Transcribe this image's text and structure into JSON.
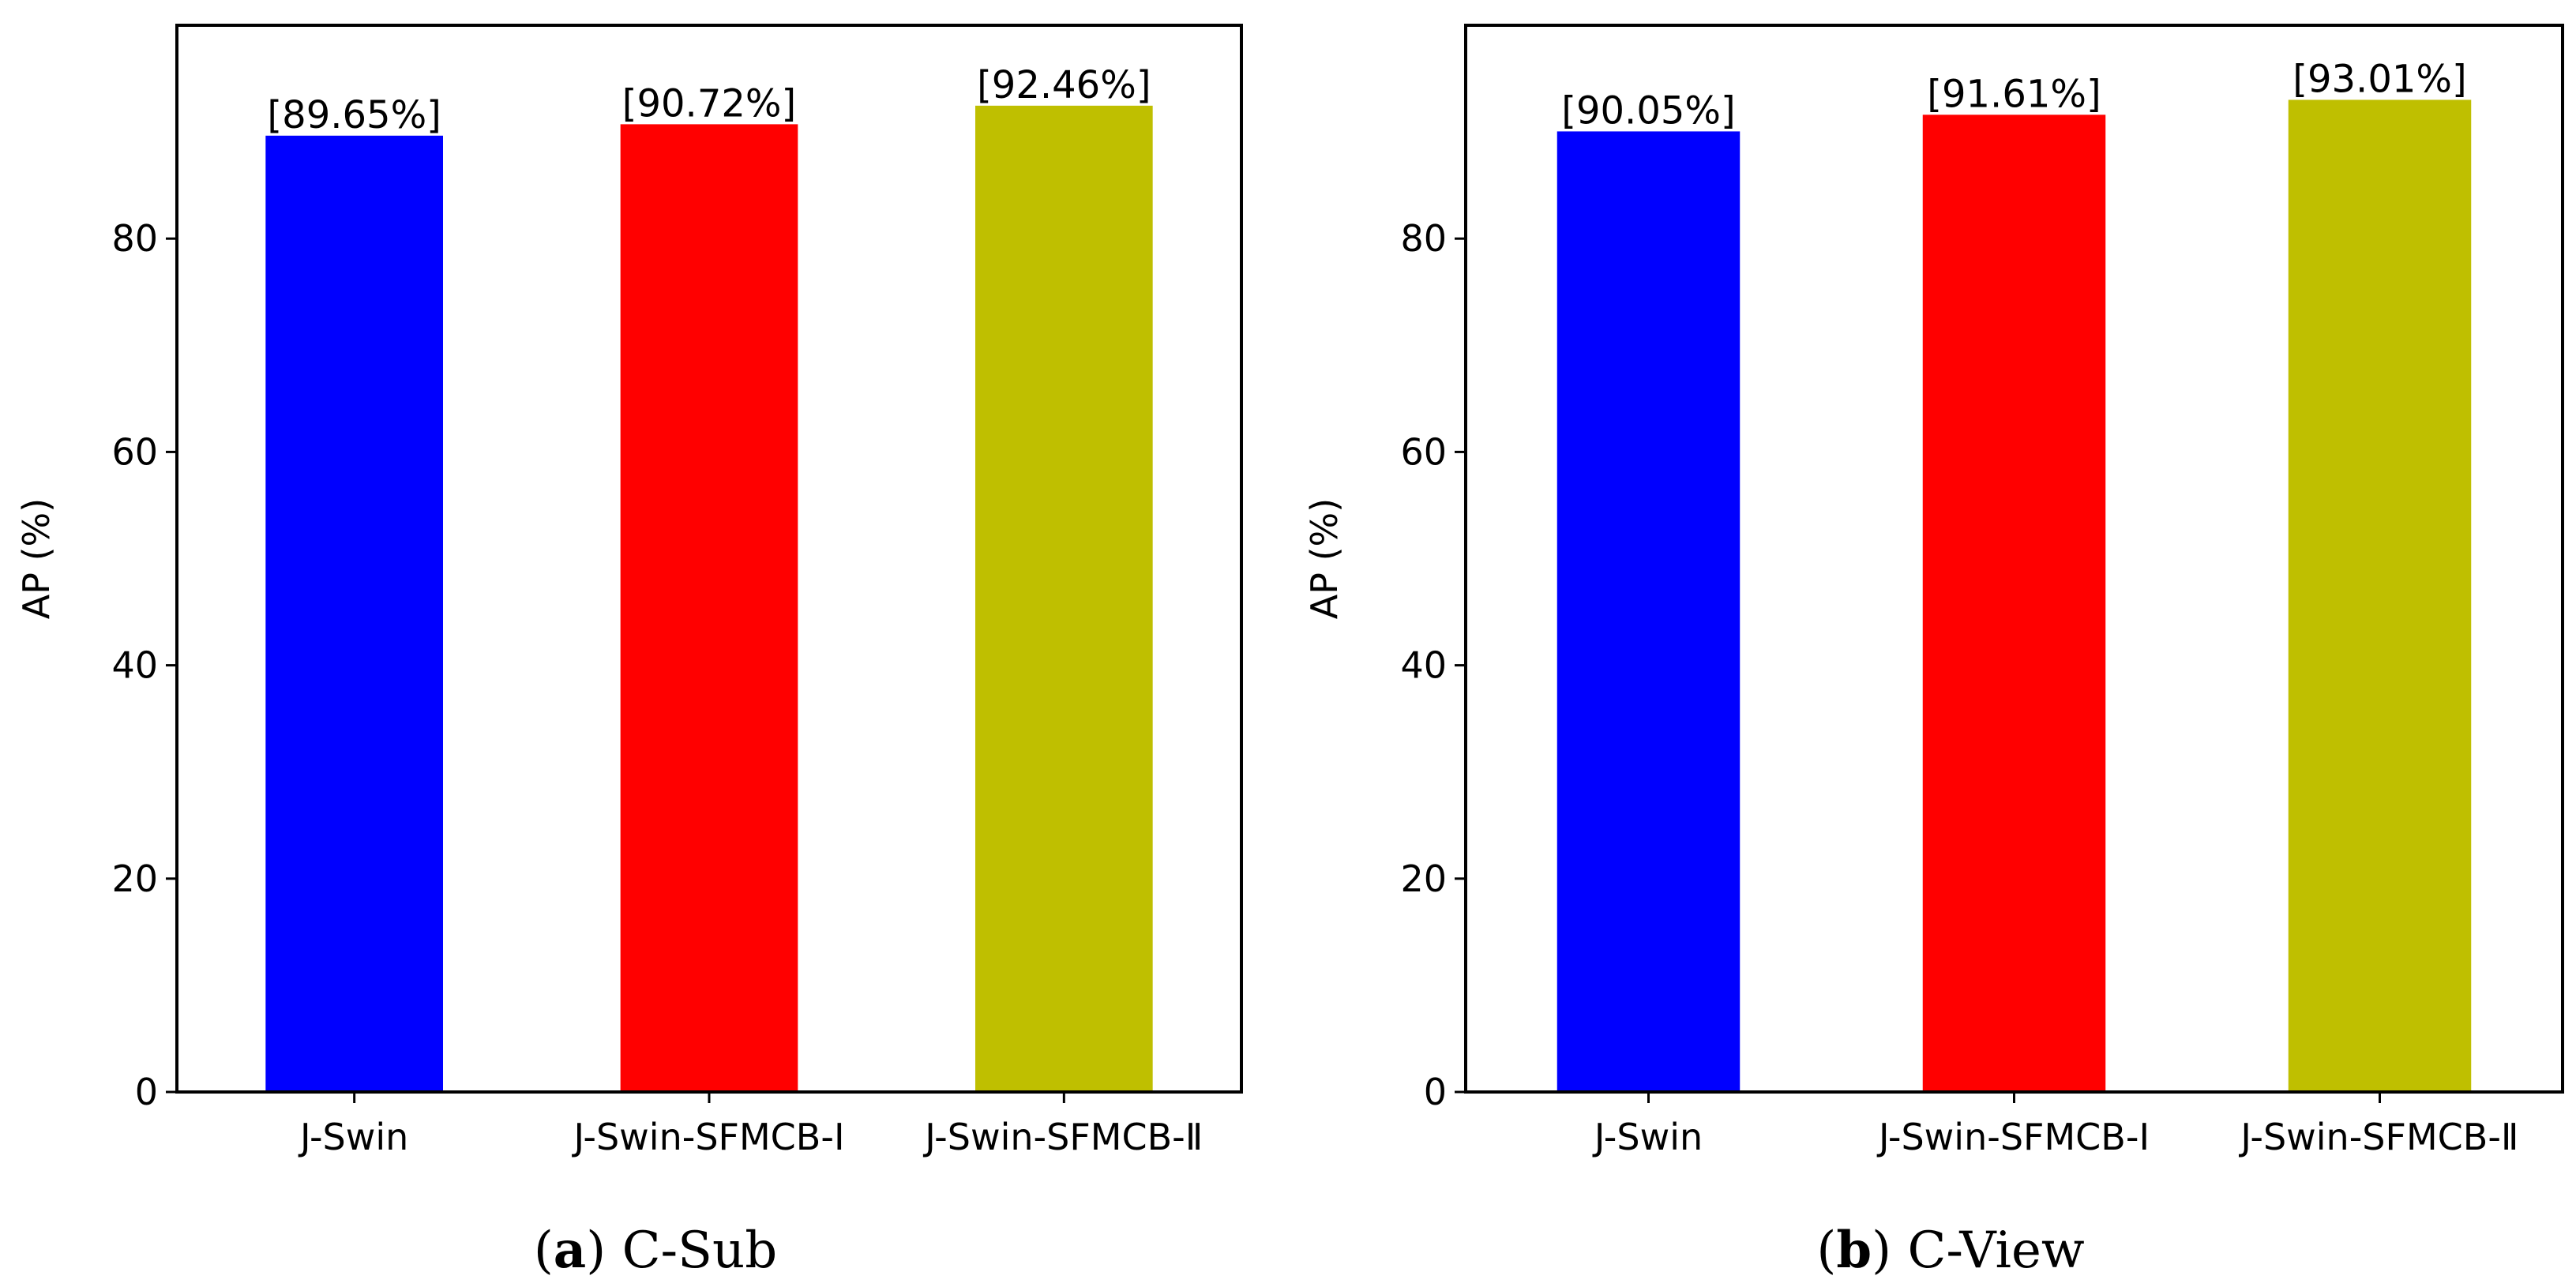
{
  "chart_data": [
    {
      "type": "bar",
      "caption_letter": "a",
      "caption_text": "C-Sub",
      "ylabel": "AP (%)",
      "xlabel": "",
      "ylim": [
        0,
        100
      ],
      "yticks": [
        0,
        20,
        40,
        60,
        80
      ],
      "categories": [
        "J-Swin",
        "J-Swin-SFMCB-I",
        "J-Swin-SFMCB-Ⅱ"
      ],
      "values": [
        89.65,
        90.72,
        92.46
      ],
      "value_labels": [
        "[89.65%]",
        "[90.72%]",
        "[92.46%]"
      ],
      "colors": [
        "#0000ff",
        "#ff0000",
        "#bfbf00"
      ],
      "grid": false
    },
    {
      "type": "bar",
      "caption_letter": "b",
      "caption_text": "C-View",
      "ylabel": "AP (%)",
      "xlabel": "",
      "ylim": [
        0,
        100
      ],
      "yticks": [
        0,
        20,
        40,
        60,
        80
      ],
      "categories": [
        "J-Swin",
        "J-Swin-SFMCB-I",
        "J-Swin-SFMCB-Ⅱ"
      ],
      "values": [
        90.05,
        91.61,
        93.01
      ],
      "value_labels": [
        "[90.05%]",
        "[91.61%]",
        "[93.01%]"
      ],
      "colors": [
        "#0000ff",
        "#ff0000",
        "#bfbf00"
      ],
      "grid": false
    }
  ]
}
